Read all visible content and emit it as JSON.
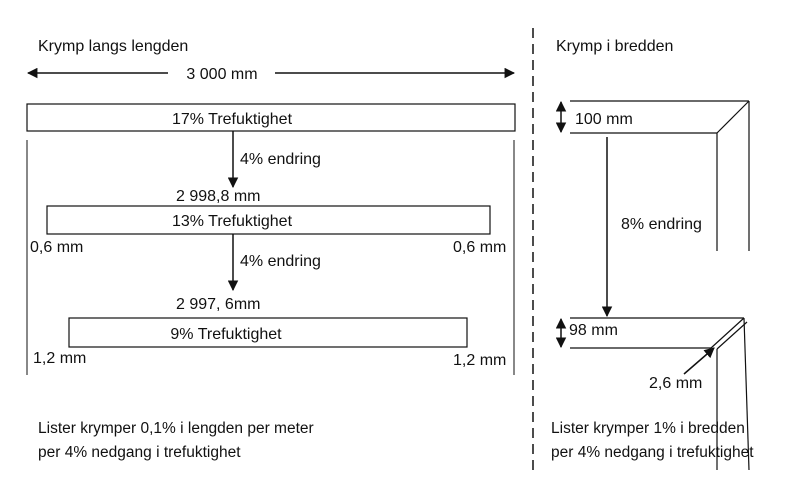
{
  "left_panel": {
    "title": "Krymp langs lengden",
    "total_length": "3 000 mm",
    "boards": [
      {
        "label": "17% Trefuktighet"
      },
      {
        "label": "13% Trefuktighet"
      },
      {
        "label": "9% Trefuktighet"
      }
    ],
    "changes": [
      "4% endring",
      "4% endring"
    ],
    "lengths": [
      "2 998,8 mm",
      "2 997, 6mm"
    ],
    "gaps_13": {
      "left": "0,6 mm",
      "right": "0,6 mm"
    },
    "gaps_9": {
      "left": "1,2 mm",
      "right": "1,2 mm"
    },
    "note_line1": "Lister krymper 0,1% i lengden per meter",
    "note_line2": "per 4% nedgang i trefuktighet"
  },
  "right_panel": {
    "title": "Krymp i bredden",
    "width_before": "100 mm",
    "change": "8% endring",
    "width_after": "98 mm",
    "corner_gap": "2,6 mm",
    "note_line1": "Lister krymper 1% i bredden",
    "note_line2": "per 4% nedgang i trefuktighet"
  }
}
